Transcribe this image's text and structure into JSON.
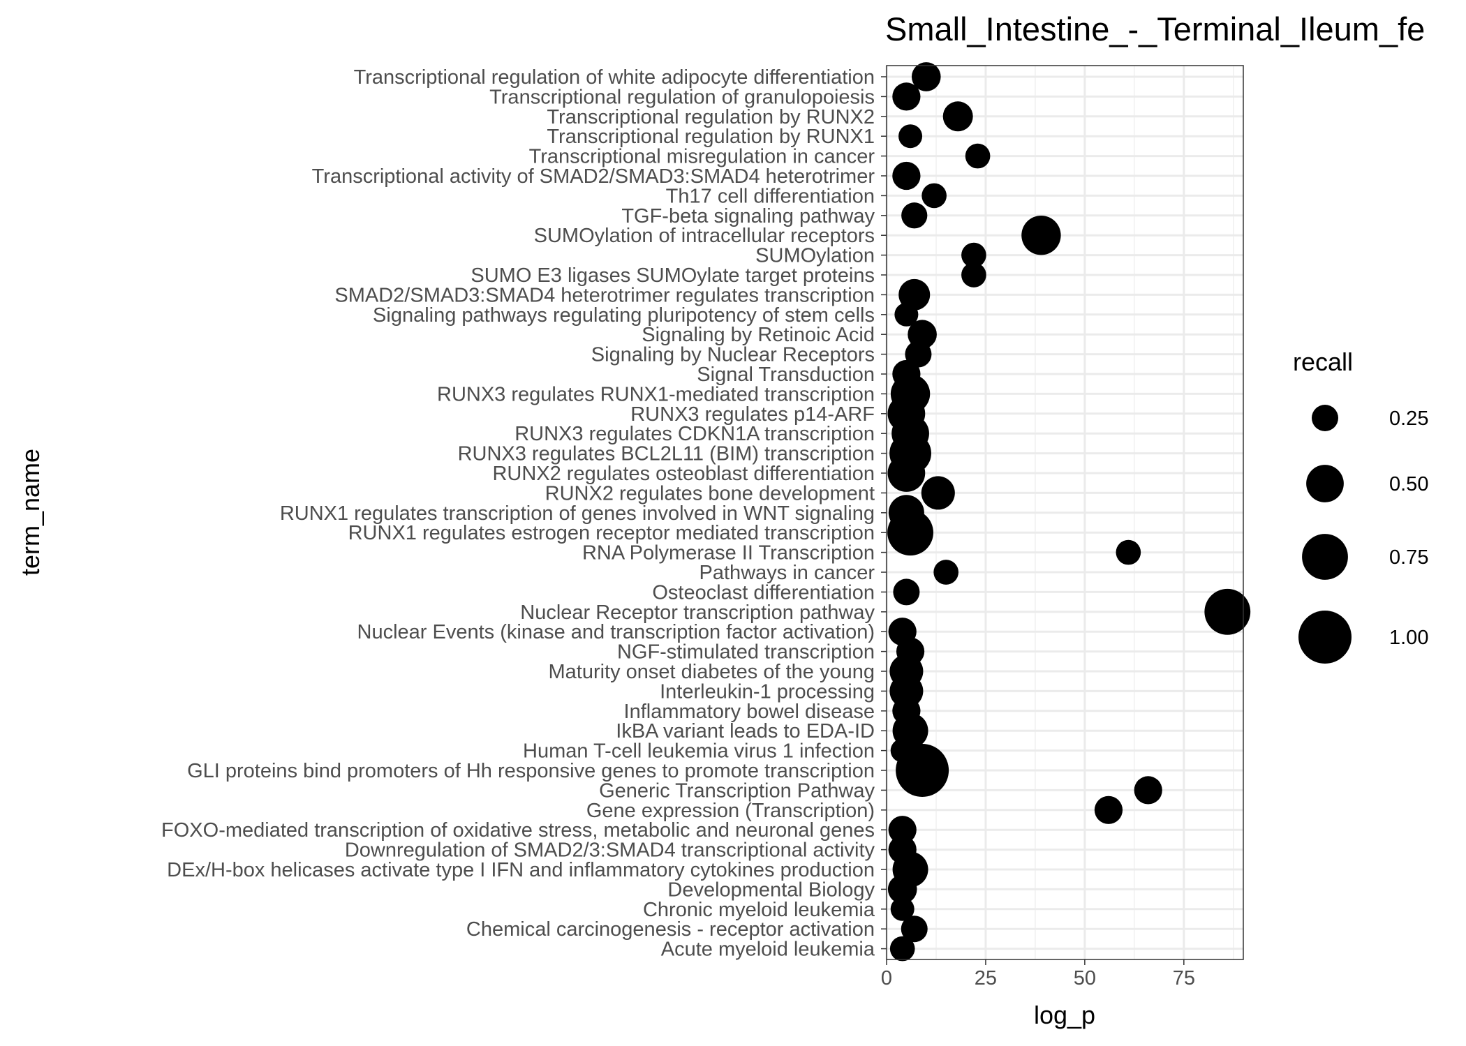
{
  "chart_data": {
    "type": "scatter",
    "title": "Small_Intestine_-_Terminal_Ileum_fe",
    "xlabel": "log_p",
    "ylabel": "term_name",
    "xlim": [
      0,
      90
    ],
    "x_ticks": [
      0,
      25,
      50,
      75
    ],
    "x_tick_labels": [
      "0",
      "25",
      "50",
      "75"
    ],
    "grid": true,
    "legend_position": "right",
    "point_color": "#000000",
    "size_legend": {
      "title": "recall",
      "entries": [
        {
          "label": "0.25",
          "value": 0.25
        },
        {
          "label": "0.50",
          "value": 0.5
        },
        {
          "label": "0.75",
          "value": 0.75
        },
        {
          "label": "1.00",
          "value": 1.0
        }
      ]
    },
    "terms": [
      "Transcriptional regulation of white adipocyte differentiation",
      "Transcriptional regulation of granulopoiesis",
      "Transcriptional regulation by RUNX2",
      "Transcriptional regulation by RUNX1",
      "Transcriptional misregulation in cancer",
      "Transcriptional activity of SMAD2/SMAD3:SMAD4 heterotrimer",
      "Th17 cell differentiation",
      "TGF-beta signaling pathway",
      "SUMOylation of intracellular receptors",
      "SUMOylation",
      "SUMO E3 ligases SUMOylate target proteins",
      "SMAD2/SMAD3:SMAD4 heterotrimer regulates transcription",
      "Signaling pathways regulating pluripotency of stem cells",
      "Signaling by Retinoic Acid",
      "Signaling by Nuclear Receptors",
      "Signal Transduction",
      "RUNX3 regulates RUNX1-mediated transcription",
      "RUNX3 regulates p14-ARF",
      "RUNX3 regulates CDKN1A transcription",
      "RUNX3 regulates BCL2L11 (BIM) transcription",
      "RUNX2 regulates osteoblast differentiation",
      "RUNX2 regulates bone development",
      "RUNX1 regulates transcription of genes involved in WNT signaling",
      "RUNX1 regulates estrogen receptor mediated transcription",
      "RNA Polymerase II Transcription",
      "Pathways in cancer",
      "Osteoclast differentiation",
      "Nuclear Receptor transcription pathway",
      "Nuclear Events (kinase and transcription factor activation)",
      "NGF-stimulated transcription",
      "Maturity onset diabetes of the young",
      "Interleukin-1 processing",
      "Inflammatory bowel disease",
      "IkBA variant leads to EDA-ID",
      "Human T-cell leukemia virus 1 infection",
      "GLI proteins bind promoters of Hh responsive genes to promote transcription",
      "Generic Transcription Pathway",
      "Gene expression (Transcription)",
      "FOXO-mediated transcription of oxidative stress, metabolic and neuronal genes",
      "Downregulation of SMAD2/3:SMAD4 transcriptional activity",
      "DEx/H-box helicases activate type I IFN and inflammatory cytokines production",
      "Developmental Biology",
      "Chronic myeloid leukemia",
      "Chemical carcinogenesis - receptor activation",
      "Acute myeloid leukemia"
    ],
    "points": [
      {
        "term": "Transcriptional regulation of white adipocyte differentiation",
        "log_p": 10,
        "recall": 0.3
      },
      {
        "term": "Transcriptional regulation of granulopoiesis",
        "log_p": 5,
        "recall": 0.28
      },
      {
        "term": "Transcriptional regulation by RUNX2",
        "log_p": 18,
        "recall": 0.32
      },
      {
        "term": "Transcriptional regulation by RUNX1",
        "log_p": 6,
        "recall": 0.2
      },
      {
        "term": "Transcriptional misregulation in cancer",
        "log_p": 23,
        "recall": 0.22
      },
      {
        "term": "Transcriptional activity of SMAD2/SMAD3:SMAD4 heterotrimer",
        "log_p": 5,
        "recall": 0.28
      },
      {
        "term": "Th17 cell differentiation",
        "log_p": 12,
        "recall": 0.22
      },
      {
        "term": "TGF-beta signaling pathway",
        "log_p": 7,
        "recall": 0.24
      },
      {
        "term": "SUMOylation of intracellular receptors",
        "log_p": 39,
        "recall": 0.55
      },
      {
        "term": "SUMOylation",
        "log_p": 22,
        "recall": 0.22
      },
      {
        "term": "SUMO E3 ligases SUMOylate target proteins",
        "log_p": 22,
        "recall": 0.22
      },
      {
        "term": "SMAD2/SMAD3:SMAD4 heterotrimer regulates transcription",
        "log_p": 7,
        "recall": 0.35
      },
      {
        "term": "Signaling pathways regulating pluripotency of stem cells",
        "log_p": 5,
        "recall": 0.2
      },
      {
        "term": "Signaling by Retinoic Acid",
        "log_p": 9,
        "recall": 0.3
      },
      {
        "term": "Signaling by Nuclear Receptors",
        "log_p": 8,
        "recall": 0.25
      },
      {
        "term": "Signal Transduction",
        "log_p": 5,
        "recall": 0.28
      },
      {
        "term": "RUNX3 regulates RUNX1-mediated transcription",
        "log_p": 6,
        "recall": 0.55
      },
      {
        "term": "RUNX3 regulates p14-ARF",
        "log_p": 5,
        "recall": 0.5
      },
      {
        "term": "RUNX3 regulates CDKN1A transcription",
        "log_p": 6,
        "recall": 0.5
      },
      {
        "term": "RUNX3 regulates BCL2L11 (BIM) transcription",
        "log_p": 6,
        "recall": 0.62
      },
      {
        "term": "RUNX2 regulates osteoblast differentiation",
        "log_p": 5,
        "recall": 0.5
      },
      {
        "term": "RUNX2 regulates bone development",
        "log_p": 13,
        "recall": 0.4
      },
      {
        "term": "RUNX1 regulates transcription of genes involved in WNT signaling",
        "log_p": 5,
        "recall": 0.45
      },
      {
        "term": "RUNX1 regulates estrogen receptor mediated transcription",
        "log_p": 6,
        "recall": 0.75
      },
      {
        "term": "RNA Polymerase II Transcription",
        "log_p": 61,
        "recall": 0.22
      },
      {
        "term": "Pathways in cancer",
        "log_p": 15,
        "recall": 0.22
      },
      {
        "term": "Osteoclast differentiation",
        "log_p": 5,
        "recall": 0.25
      },
      {
        "term": "Nuclear Receptor transcription pathway",
        "log_p": 86,
        "recall": 0.75
      },
      {
        "term": "Nuclear Events (kinase and transcription factor activation)",
        "log_p": 4,
        "recall": 0.28
      },
      {
        "term": "NGF-stimulated transcription",
        "log_p": 6,
        "recall": 0.28
      },
      {
        "term": "Maturity onset diabetes of the young",
        "log_p": 5,
        "recall": 0.4
      },
      {
        "term": "Interleukin-1 processing",
        "log_p": 5,
        "recall": 0.4
      },
      {
        "term": "Inflammatory bowel disease",
        "log_p": 5,
        "recall": 0.28
      },
      {
        "term": "IkBA variant leads to EDA-ID",
        "log_p": 6,
        "recall": 0.45
      },
      {
        "term": "Human T-cell leukemia virus 1 infection",
        "log_p": 4,
        "recall": 0.2
      },
      {
        "term": "GLI proteins bind promoters of Hh responsive genes to promote transcription",
        "log_p": 9,
        "recall": 1.0
      },
      {
        "term": "Generic Transcription Pathway",
        "log_p": 66,
        "recall": 0.28
      },
      {
        "term": "Gene expression (Transcription)",
        "log_p": 56,
        "recall": 0.28
      },
      {
        "term": "FOXO-mediated transcription of oxidative stress, metabolic and neuronal genes",
        "log_p": 4,
        "recall": 0.28
      },
      {
        "term": "Downregulation of SMAD2/3:SMAD4 transcriptional activity",
        "log_p": 4,
        "recall": 0.28
      },
      {
        "term": "DEx/H-box helicases activate type I IFN and inflammatory cytokines production",
        "log_p": 6,
        "recall": 0.45
      },
      {
        "term": "Developmental Biology",
        "log_p": 4,
        "recall": 0.3
      },
      {
        "term": "Chronic myeloid leukemia",
        "log_p": 4,
        "recall": 0.2
      },
      {
        "term": "Chemical carcinogenesis - receptor activation",
        "log_p": 7,
        "recall": 0.25
      },
      {
        "term": "Acute myeloid leukemia",
        "log_p": 4,
        "recall": 0.22
      }
    ]
  }
}
